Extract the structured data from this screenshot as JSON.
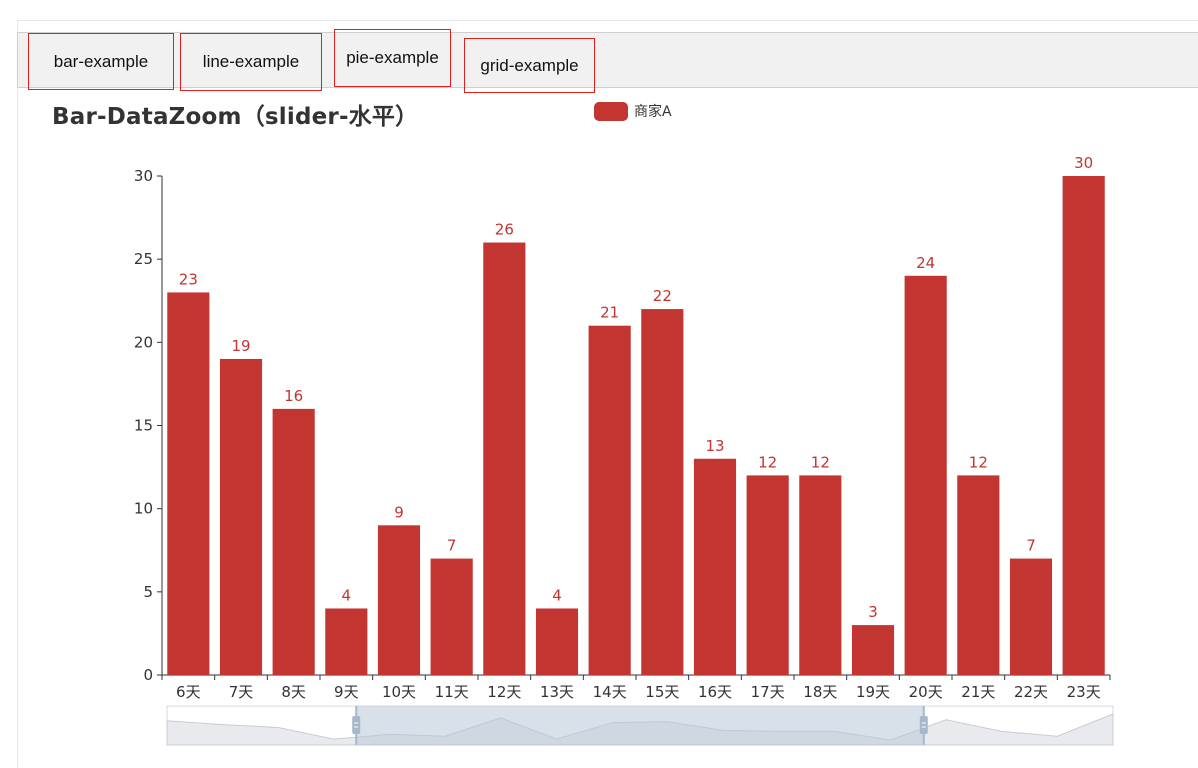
{
  "tabs": [
    {
      "label": "bar-example"
    },
    {
      "label": "line-example"
    },
    {
      "label": "pie-example"
    },
    {
      "label": "grid-example"
    }
  ],
  "colors": {
    "bar": "#c23531",
    "axis": "#333333",
    "label": "#c23531"
  },
  "chart_data": {
    "type": "bar",
    "title": "Bar-DataZoom（slider-水平）",
    "legend": {
      "entries": [
        "商家A"
      ],
      "placement": "top-center"
    },
    "categories": [
      "6天",
      "7天",
      "8天",
      "9天",
      "10天",
      "11天",
      "12天",
      "13天",
      "14天",
      "15天",
      "16天",
      "17天",
      "18天",
      "19天",
      "20天",
      "21天",
      "22天",
      "23天"
    ],
    "series": [
      {
        "name": "商家A",
        "values": [
          23,
          19,
          16,
          4,
          9,
          7,
          26,
          4,
          21,
          22,
          13,
          12,
          12,
          3,
          24,
          12,
          7,
          30
        ]
      }
    ],
    "ylim": [
      0,
      30
    ],
    "yticks": [
      0,
      5,
      10,
      15,
      20,
      25,
      30
    ],
    "grid": false,
    "data_labels": true,
    "datazoom": {
      "type": "slider",
      "orientation": "horizontal",
      "start_percent": 20,
      "end_percent": 80
    }
  }
}
